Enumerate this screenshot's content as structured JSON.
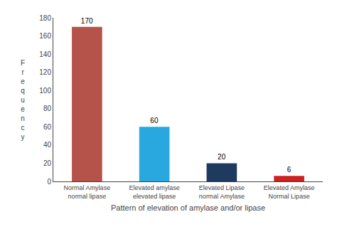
{
  "chart_data": {
    "type": "bar",
    "categories": [
      "Normal Amylase\nnormal lipase",
      "Elevated amylase\nelevated lipase",
      "Elevated Lipase\nnormal Amylase",
      "Elevated Amylase\nNormal Lipase"
    ],
    "values": [
      170,
      60,
      20,
      6
    ],
    "colors": [
      "#b5524a",
      "#29a8e0",
      "#1e3a5f",
      "#cc2222"
    ],
    "xlabel": "Pattern of elevation of amylase and/or lipase",
    "ylabel": "F\nr\ne\nq\nu\ne\nn\nc\ny",
    "ylim": [
      0,
      180
    ],
    "yticks": [
      0,
      20,
      40,
      60,
      80,
      100,
      120,
      140,
      160,
      180
    ],
    "data_labels": true,
    "grid": false
  }
}
